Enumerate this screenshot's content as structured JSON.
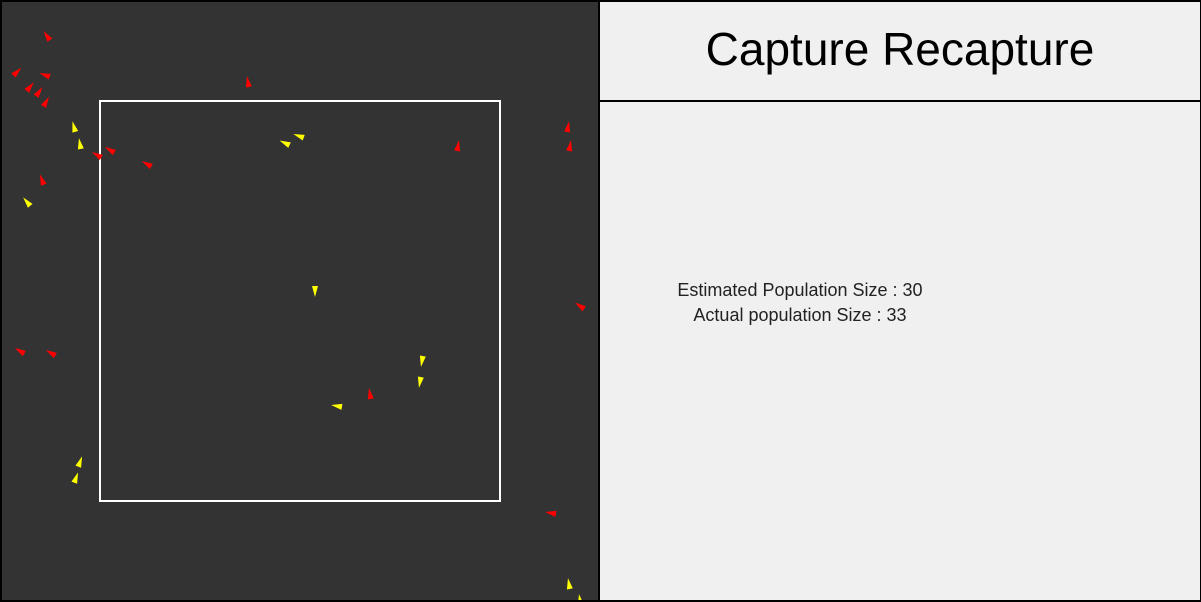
{
  "title": "Capture Recapture",
  "stats": {
    "estimated_label": "Estimated Population Size : 30",
    "actual_label": "Actual population Size : 33"
  },
  "colors": {
    "background": "#333333",
    "panel": "#f0f0f0",
    "capture_box": "#ffffff",
    "uncaptured": "#ff0000",
    "marked": "#ffff00"
  }
}
